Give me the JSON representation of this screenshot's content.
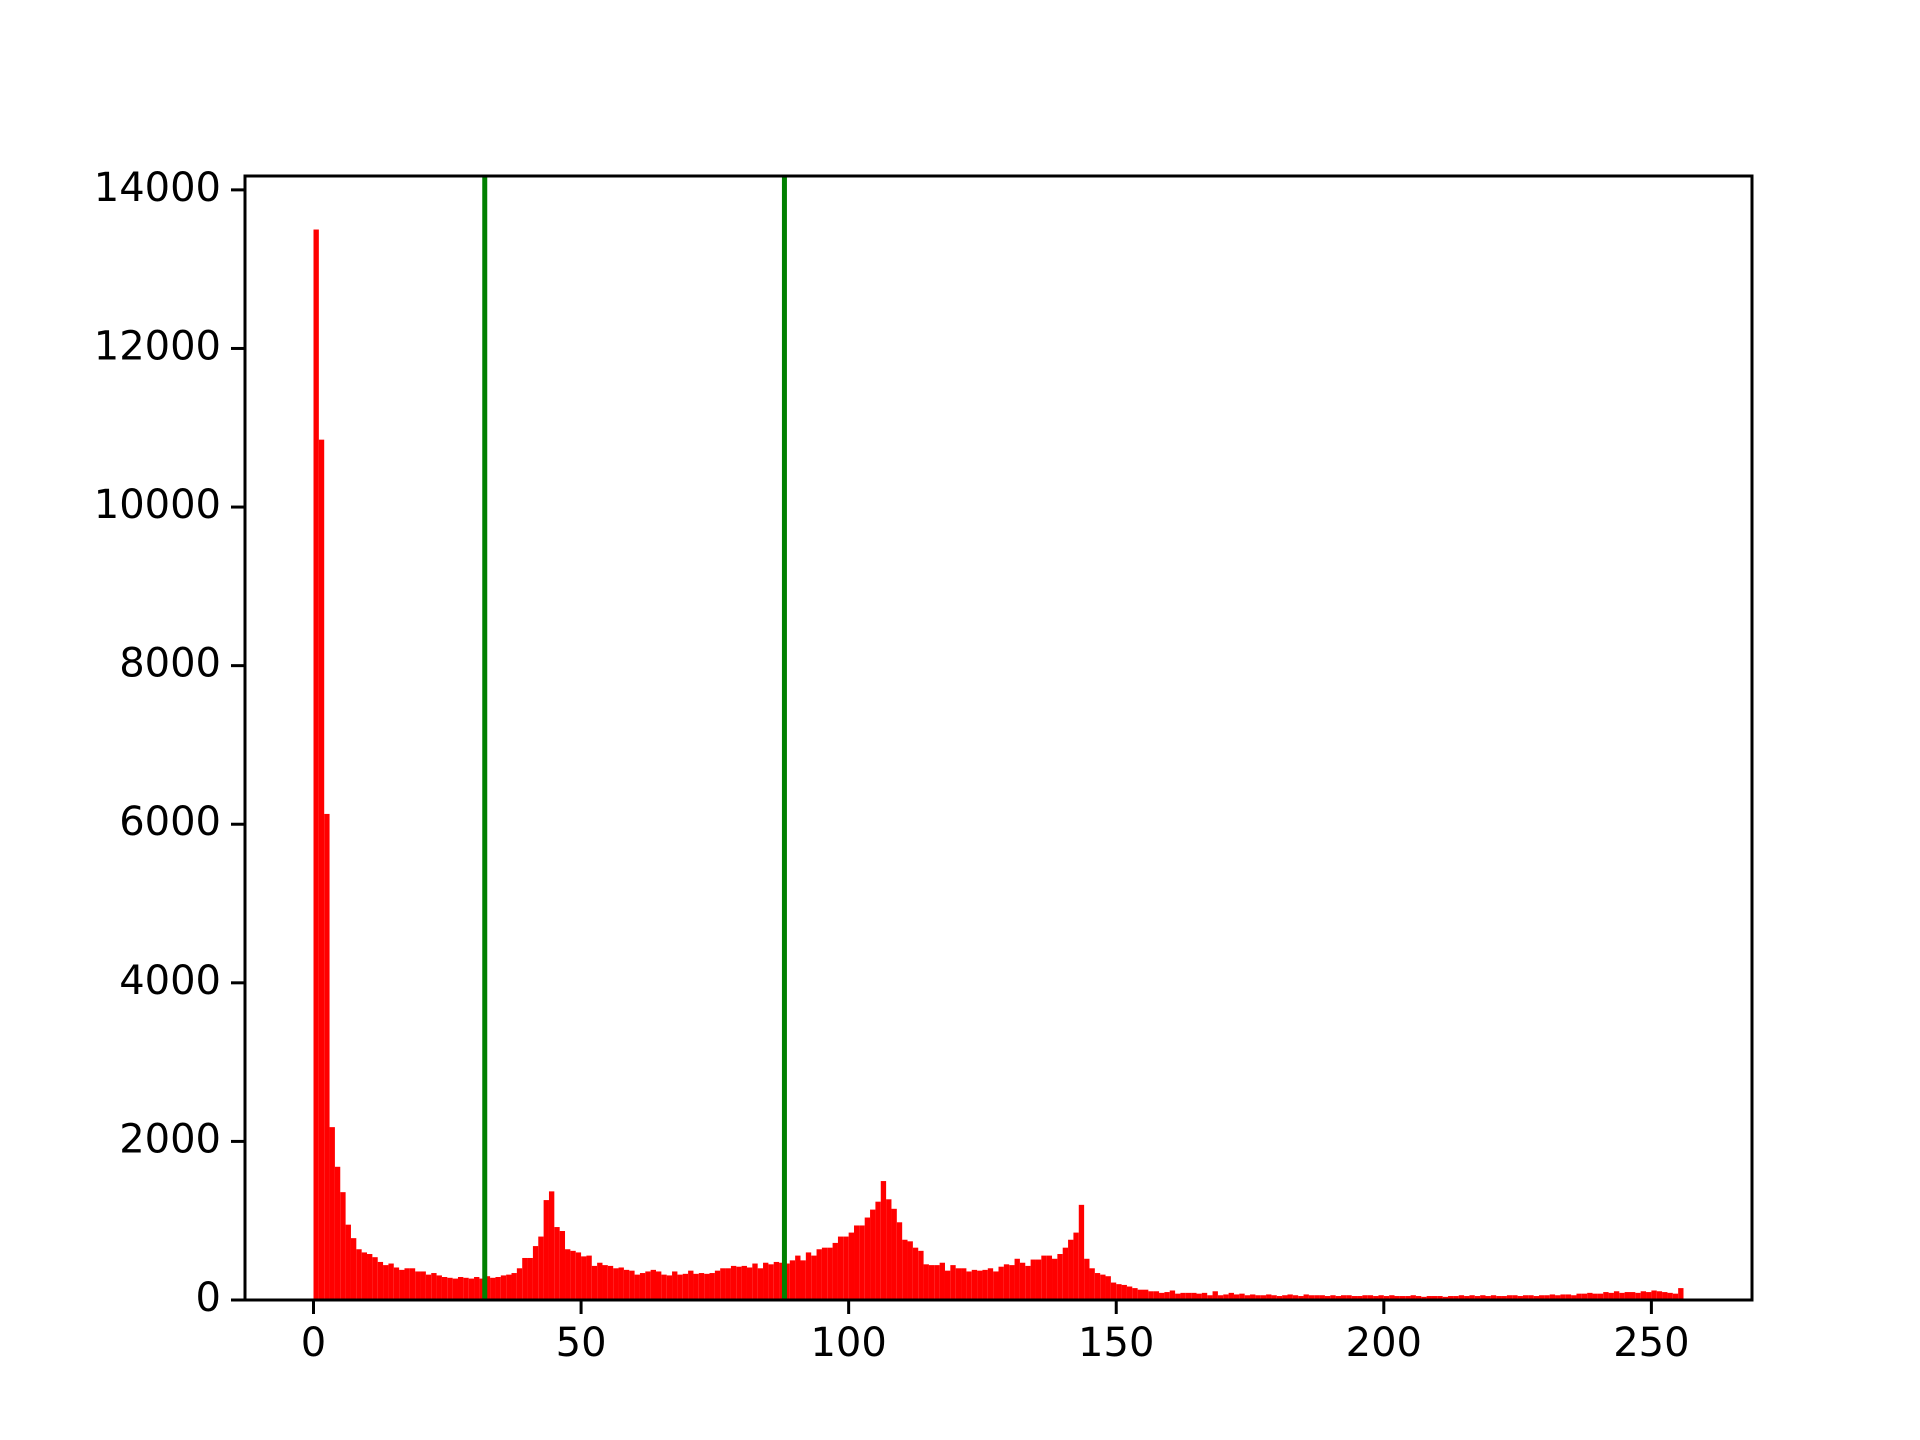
{
  "chart_data": {
    "type": "histogram",
    "bins": [
      0,
      1,
      2,
      3,
      4,
      5,
      6,
      7,
      8,
      9,
      10,
      11,
      12,
      13,
      14,
      15,
      16,
      17,
      18,
      19,
      20,
      21,
      22,
      23,
      24,
      25,
      26,
      27,
      28,
      29,
      30,
      31,
      32,
      33,
      34,
      35,
      36,
      37,
      38,
      39,
      40,
      41,
      42,
      43,
      44,
      45,
      46,
      47,
      48,
      49,
      50,
      51,
      52,
      53,
      54,
      55,
      56,
      57,
      58,
      59,
      60,
      61,
      62,
      63,
      64,
      65,
      66,
      67,
      68,
      69,
      70,
      71,
      72,
      73,
      74,
      75,
      76,
      77,
      78,
      79,
      80,
      81,
      82,
      83,
      84,
      85,
      86,
      87,
      88,
      89,
      90,
      91,
      92,
      93,
      94,
      95,
      96,
      97,
      98,
      99,
      100,
      101,
      102,
      103,
      104,
      105,
      106,
      107,
      108,
      109,
      110,
      111,
      112,
      113,
      114,
      115,
      116,
      117,
      118,
      119,
      120,
      121,
      122,
      123,
      124,
      125,
      126,
      127,
      128,
      129,
      130,
      131,
      132,
      133,
      134,
      135,
      136,
      137,
      138,
      139,
      140,
      141,
      142,
      143,
      144,
      145,
      146,
      147,
      148,
      149,
      150,
      151,
      152,
      153,
      154,
      155,
      156,
      157,
      158,
      159,
      160,
      161,
      162,
      163,
      164,
      165,
      166,
      167,
      168,
      169,
      170,
      171,
      172,
      173,
      174,
      175,
      176,
      177,
      178,
      179,
      180,
      181,
      182,
      183,
      184,
      185,
      186,
      187,
      188,
      189,
      190,
      191,
      192,
      193,
      194,
      195,
      196,
      197,
      198,
      199,
      200,
      201,
      202,
      203,
      204,
      205,
      206,
      207,
      208,
      209,
      210,
      211,
      212,
      213,
      214,
      215,
      216,
      217,
      218,
      219,
      220,
      221,
      222,
      223,
      224,
      225,
      226,
      227,
      228,
      229,
      230,
      231,
      232,
      233,
      234,
      235,
      236,
      237,
      238,
      239,
      240,
      241,
      242,
      243,
      244,
      245,
      246,
      247,
      248,
      249,
      250,
      251,
      252,
      253,
      254,
      255,
      256
    ],
    "counts": [
      13500,
      10850,
      6130,
      2180,
      1680,
      1360,
      950,
      780,
      640,
      600,
      580,
      540,
      480,
      440,
      460,
      410,
      380,
      400,
      400,
      360,
      360,
      320,
      340,
      310,
      290,
      280,
      270,
      290,
      280,
      270,
      290,
      270,
      300,
      280,
      290,
      310,
      320,
      340,
      400,
      530,
      530,
      680,
      800,
      1260,
      1370,
      920,
      870,
      640,
      620,
      600,
      550,
      560,
      430,
      470,
      440,
      430,
      400,
      410,
      380,
      370,
      320,
      340,
      360,
      380,
      360,
      320,
      310,
      360,
      320,
      330,
      370,
      330,
      340,
      330,
      340,
      370,
      400,
      400,
      430,
      420,
      430,
      410,
      460,
      400,
      470,
      450,
      480,
      470,
      460,
      500,
      560,
      500,
      600,
      560,
      640,
      660,
      660,
      720,
      800,
      800,
      850,
      940,
      940,
      1040,
      1140,
      1240,
      1500,
      1270,
      1150,
      980,
      760,
      740,
      660,
      620,
      450,
      440,
      440,
      470,
      370,
      440,
      400,
      400,
      360,
      380,
      370,
      380,
      400,
      360,
      420,
      450,
      440,
      520,
      470,
      430,
      510,
      510,
      560,
      560,
      520,
      580,
      660,
      760,
      850,
      1200,
      520,
      400,
      340,
      320,
      300,
      220,
      200,
      190,
      170,
      150,
      130,
      130,
      110,
      110,
      90,
      100,
      120,
      80,
      90,
      90,
      90,
      80,
      90,
      60,
      110,
      60,
      70,
      90,
      70,
      80,
      60,
      70,
      60,
      60,
      70,
      60,
      50,
      60,
      70,
      60,
      50,
      70,
      60,
      60,
      60,
      50,
      60,
      50,
      60,
      60,
      50,
      50,
      60,
      60,
      50,
      60,
      50,
      60,
      50,
      50,
      50,
      60,
      50,
      40,
      50,
      50,
      50,
      40,
      50,
      50,
      60,
      50,
      60,
      50,
      60,
      50,
      60,
      50,
      50,
      60,
      60,
      50,
      60,
      60,
      50,
      60,
      60,
      70,
      60,
      70,
      70,
      60,
      80,
      80,
      90,
      80,
      80,
      100,
      90,
      110,
      90,
      100,
      100,
      90,
      110,
      100,
      120,
      110,
      100,
      90,
      80,
      150
    ],
    "color": "#ff0000",
    "vlines": [
      32,
      88
    ],
    "vline_color": "#008000",
    "xlim": [
      -12.8,
      268.8
    ],
    "xticks": [
      0,
      50,
      100,
      150,
      200,
      250
    ],
    "ylim": [
      0,
      14175
    ],
    "yticks": [
      0,
      2000,
      4000,
      6000,
      8000,
      10000,
      12000,
      14000
    ]
  }
}
